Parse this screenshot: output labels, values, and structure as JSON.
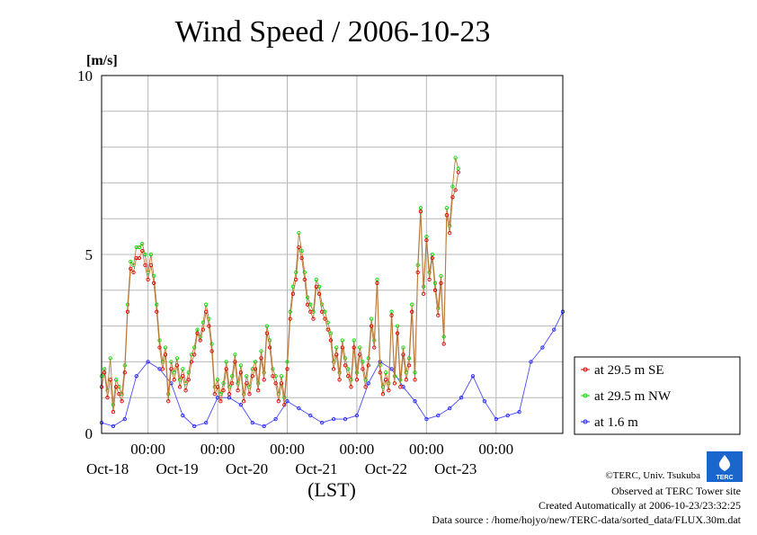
{
  "chart_data": {
    "type": "line",
    "title": "Wind Speed / 2006-10-23",
    "ylabel": "[m/s]",
    "xlabel": "(LST)",
    "ylim": [
      0,
      10
    ],
    "yticks": [
      0,
      5,
      10
    ],
    "xlim": [
      "2006-10-17T08:00",
      "2006-10-23T23:00"
    ],
    "xticks": [
      {
        "at": "2006-10-18T00:00",
        "time": "00:00",
        "date": "Oct-18"
      },
      {
        "at": "2006-10-19T00:00",
        "time": "00:00",
        "date": "Oct-19"
      },
      {
        "at": "2006-10-20T00:00",
        "time": "00:00",
        "date": "Oct-20"
      },
      {
        "at": "2006-10-21T00:00",
        "time": "00:00",
        "date": "Oct-21"
      },
      {
        "at": "2006-10-22T00:00",
        "time": "00:00",
        "date": "Oct-22"
      },
      {
        "at": "2006-10-23T00:00",
        "time": "00:00",
        "date": "Oct-23"
      }
    ],
    "grid": true,
    "legend_position": "right",
    "series_info": [
      {
        "name": "at 29.5 m SE",
        "color": "#e00000"
      },
      {
        "name": "at 29.5 m NW",
        "color": "#00dd00"
      },
      {
        "name": "at 1.6 m",
        "color": "#2020ff"
      }
    ],
    "anchors_series_1": [
      [
        "2006-10-17T08:00",
        1.3
      ],
      [
        "2006-10-17T09:00",
        1.7
      ],
      [
        "2006-10-17T10:00",
        1.0
      ],
      [
        "2006-10-17T11:00",
        1.5
      ],
      [
        "2006-10-17T12:00",
        0.6
      ],
      [
        "2006-10-17T13:00",
        1.3
      ],
      [
        "2006-10-17T14:00",
        1.1
      ],
      [
        "2006-10-17T15:00",
        0.9
      ],
      [
        "2006-10-17T16:00",
        1.7
      ],
      [
        "2006-10-17T17:00",
        3.4
      ],
      [
        "2006-10-17T18:00",
        4.6
      ],
      [
        "2006-10-17T19:00",
        4.5
      ],
      [
        "2006-10-17T20:00",
        4.9
      ],
      [
        "2006-10-17T21:00",
        4.9
      ],
      [
        "2006-10-17T22:00",
        5.1
      ],
      [
        "2006-10-17T23:00",
        4.7
      ],
      [
        "2006-10-18T00:00",
        4.3
      ],
      [
        "2006-10-18T01:00",
        4.7
      ],
      [
        "2006-10-18T02:00",
        4.2
      ],
      [
        "2006-10-18T03:00",
        3.4
      ],
      [
        "2006-10-18T04:00",
        2.4
      ],
      [
        "2006-10-18T05:00",
        1.8
      ],
      [
        "2006-10-18T06:00",
        2.2
      ],
      [
        "2006-10-18T07:00",
        0.9
      ],
      [
        "2006-10-18T08:00",
        1.8
      ],
      [
        "2006-10-18T09:00",
        1.5
      ],
      [
        "2006-10-18T10:00",
        1.9
      ],
      [
        "2006-10-18T11:00",
        1.3
      ],
      [
        "2006-10-18T12:00",
        1.6
      ],
      [
        "2006-10-18T13:00",
        1.2
      ],
      [
        "2006-10-18T14:00",
        1.5
      ],
      [
        "2006-10-18T15:00",
        2.0
      ],
      [
        "2006-10-18T16:00",
        2.2
      ],
      [
        "2006-10-18T17:00",
        2.8
      ],
      [
        "2006-10-18T18:00",
        2.6
      ],
      [
        "2006-10-18T19:00",
        2.9
      ],
      [
        "2006-10-18T20:00",
        3.4
      ],
      [
        "2006-10-18T21:00",
        3.0
      ],
      [
        "2006-10-18T22:00",
        2.3
      ],
      [
        "2006-10-18T23:00",
        1.1
      ],
      [
        "2006-10-19T00:00",
        1.3
      ],
      [
        "2006-10-19T01:00",
        0.9
      ],
      [
        "2006-10-19T02:00",
        1.2
      ],
      [
        "2006-10-19T03:00",
        1.8
      ],
      [
        "2006-10-19T04:00",
        1.1
      ],
      [
        "2006-10-19T05:00",
        1.4
      ],
      [
        "2006-10-19T06:00",
        2.0
      ],
      [
        "2006-10-19T07:00",
        1.2
      ],
      [
        "2006-10-19T08:00",
        1.7
      ],
      [
        "2006-10-19T09:00",
        0.9
      ],
      [
        "2006-10-19T10:00",
        1.4
      ],
      [
        "2006-10-19T11:00",
        1.1
      ],
      [
        "2006-10-19T12:00",
        1.6
      ],
      [
        "2006-10-19T13:00",
        1.8
      ],
      [
        "2006-10-19T14:00",
        1.2
      ],
      [
        "2006-10-19T15:00",
        2.1
      ],
      [
        "2006-10-19T16:00",
        1.5
      ],
      [
        "2006-10-19T17:00",
        2.8
      ],
      [
        "2006-10-19T18:00",
        2.4
      ],
      [
        "2006-10-19T19:00",
        1.6
      ],
      [
        "2006-10-19T20:00",
        1.4
      ],
      [
        "2006-10-19T21:00",
        0.9
      ],
      [
        "2006-10-19T22:00",
        1.4
      ],
      [
        "2006-10-19T23:00",
        0.8
      ],
      [
        "2006-10-20T00:00",
        1.8
      ],
      [
        "2006-10-20T01:00",
        3.2
      ],
      [
        "2006-10-20T02:00",
        3.9
      ],
      [
        "2006-10-20T03:00",
        4.3
      ],
      [
        "2006-10-20T04:00",
        5.2
      ],
      [
        "2006-10-20T05:00",
        4.9
      ],
      [
        "2006-10-20T06:00",
        4.3
      ],
      [
        "2006-10-20T07:00",
        3.6
      ],
      [
        "2006-10-20T08:00",
        3.4
      ],
      [
        "2006-10-20T09:00",
        3.2
      ],
      [
        "2006-10-20T10:00",
        4.1
      ],
      [
        "2006-10-20T11:00",
        3.9
      ],
      [
        "2006-10-20T12:00",
        3.4
      ],
      [
        "2006-10-20T13:00",
        3.2
      ],
      [
        "2006-10-20T14:00",
        2.9
      ],
      [
        "2006-10-20T15:00",
        2.6
      ],
      [
        "2006-10-20T16:00",
        1.8
      ],
      [
        "2006-10-20T17:00",
        2.2
      ],
      [
        "2006-10-20T18:00",
        1.5
      ],
      [
        "2006-10-20T19:00",
        2.4
      ],
      [
        "2006-10-20T20:00",
        1.9
      ],
      [
        "2006-10-20T21:00",
        1.6
      ],
      [
        "2006-10-20T22:00",
        1.3
      ],
      [
        "2006-10-20T23:00",
        2.4
      ],
      [
        "2006-10-21T00:00",
        1.5
      ],
      [
        "2006-10-21T01:00",
        2.2
      ],
      [
        "2006-10-21T02:00",
        1.8
      ],
      [
        "2006-10-21T03:00",
        1.3
      ],
      [
        "2006-10-21T04:00",
        1.9
      ],
      [
        "2006-10-21T05:00",
        3.0
      ],
      [
        "2006-10-21T06:00",
        2.4
      ],
      [
        "2006-10-21T07:00",
        4.2
      ],
      [
        "2006-10-21T08:00",
        1.7
      ],
      [
        "2006-10-21T09:00",
        1.1
      ],
      [
        "2006-10-21T10:00",
        1.5
      ],
      [
        "2006-10-21T11:00",
        1.2
      ],
      [
        "2006-10-21T12:00",
        3.3
      ],
      [
        "2006-10-21T13:00",
        1.4
      ],
      [
        "2006-10-21T14:00",
        2.8
      ],
      [
        "2006-10-21T15:00",
        1.3
      ],
      [
        "2006-10-21T16:00",
        2.2
      ],
      [
        "2006-10-21T17:00",
        1.5
      ],
      [
        "2006-10-21T18:00",
        1.9
      ],
      [
        "2006-10-21T19:00",
        3.4
      ],
      [
        "2006-10-21T20:00",
        1.5
      ],
      [
        "2006-10-21T21:00",
        4.5
      ],
      [
        "2006-10-21T22:00",
        6.2
      ],
      [
        "2006-10-21T23:00",
        3.9
      ],
      [
        "2006-10-22T00:00",
        5.4
      ],
      [
        "2006-10-22T01:00",
        4.3
      ],
      [
        "2006-10-22T02:00",
        4.9
      ],
      [
        "2006-10-22T03:00",
        4.0
      ],
      [
        "2006-10-22T04:00",
        3.3
      ],
      [
        "2006-10-22T05:00",
        4.2
      ],
      [
        "2006-10-22T06:00",
        2.5
      ],
      [
        "2006-10-22T07:00",
        6.1
      ],
      [
        "2006-10-22T08:00",
        5.6
      ],
      [
        "2006-10-22T09:00",
        6.6
      ],
      [
        "2006-10-22T10:00",
        6.8
      ],
      [
        "2006-10-22T11:00",
        7.3
      ]
    ],
    "anchors_series_2": [
      [
        "2006-10-17T08:00",
        1.6
      ],
      [
        "2006-10-17T09:00",
        1.8
      ],
      [
        "2006-10-17T10:00",
        1.2
      ],
      [
        "2006-10-17T11:00",
        2.1
      ],
      [
        "2006-10-17T12:00",
        0.8
      ],
      [
        "2006-10-17T13:00",
        1.5
      ],
      [
        "2006-10-17T14:00",
        1.3
      ],
      [
        "2006-10-17T15:00",
        1.1
      ],
      [
        "2006-10-17T16:00",
        1.9
      ],
      [
        "2006-10-17T17:00",
        3.6
      ],
      [
        "2006-10-17T18:00",
        4.8
      ],
      [
        "2006-10-17T19:00",
        4.7
      ],
      [
        "2006-10-17T20:00",
        5.2
      ],
      [
        "2006-10-17T21:00",
        5.2
      ],
      [
        "2006-10-17T22:00",
        5.3
      ],
      [
        "2006-10-17T23:00",
        5.0
      ],
      [
        "2006-10-18T00:00",
        4.5
      ],
      [
        "2006-10-18T01:00",
        5.0
      ],
      [
        "2006-10-18T02:00",
        4.4
      ],
      [
        "2006-10-18T03:00",
        3.6
      ],
      [
        "2006-10-18T04:00",
        2.6
      ],
      [
        "2006-10-18T05:00",
        2.0
      ],
      [
        "2006-10-18T06:00",
        2.4
      ],
      [
        "2006-10-18T07:00",
        1.1
      ],
      [
        "2006-10-18T08:00",
        2.0
      ],
      [
        "2006-10-18T09:00",
        1.7
      ],
      [
        "2006-10-18T10:00",
        2.1
      ],
      [
        "2006-10-18T11:00",
        1.5
      ],
      [
        "2006-10-18T12:00",
        1.8
      ],
      [
        "2006-10-18T13:00",
        1.4
      ],
      [
        "2006-10-18T14:00",
        1.7
      ],
      [
        "2006-10-18T15:00",
        2.2
      ],
      [
        "2006-10-18T16:00",
        2.4
      ],
      [
        "2006-10-18T17:00",
        2.9
      ],
      [
        "2006-10-18T18:00",
        2.7
      ],
      [
        "2006-10-18T19:00",
        3.1
      ],
      [
        "2006-10-18T20:00",
        3.6
      ],
      [
        "2006-10-18T21:00",
        3.2
      ],
      [
        "2006-10-18T22:00",
        2.5
      ],
      [
        "2006-10-18T23:00",
        1.3
      ],
      [
        "2006-10-19T00:00",
        1.5
      ],
      [
        "2006-10-19T01:00",
        1.1
      ],
      [
        "2006-10-19T02:00",
        1.4
      ],
      [
        "2006-10-19T03:00",
        2.0
      ],
      [
        "2006-10-19T04:00",
        1.3
      ],
      [
        "2006-10-19T05:00",
        1.6
      ],
      [
        "2006-10-19T06:00",
        2.2
      ],
      [
        "2006-10-19T07:00",
        1.4
      ],
      [
        "2006-10-19T08:00",
        1.9
      ],
      [
        "2006-10-19T09:00",
        1.1
      ],
      [
        "2006-10-19T10:00",
        1.6
      ],
      [
        "2006-10-19T11:00",
        1.3
      ],
      [
        "2006-10-19T12:00",
        1.8
      ],
      [
        "2006-10-19T13:00",
        2.0
      ],
      [
        "2006-10-19T14:00",
        1.4
      ],
      [
        "2006-10-19T15:00",
        2.3
      ],
      [
        "2006-10-19T16:00",
        1.7
      ],
      [
        "2006-10-19T17:00",
        3.0
      ],
      [
        "2006-10-19T18:00",
        2.6
      ],
      [
        "2006-10-19T19:00",
        1.8
      ],
      [
        "2006-10-19T20:00",
        1.6
      ],
      [
        "2006-10-19T21:00",
        1.1
      ],
      [
        "2006-10-19T22:00",
        1.6
      ],
      [
        "2006-10-19T23:00",
        1.0
      ],
      [
        "2006-10-20T00:00",
        2.0
      ],
      [
        "2006-10-20T01:00",
        3.4
      ],
      [
        "2006-10-20T02:00",
        4.1
      ],
      [
        "2006-10-20T03:00",
        4.5
      ],
      [
        "2006-10-20T04:00",
        5.6
      ],
      [
        "2006-10-20T05:00",
        5.1
      ],
      [
        "2006-10-20T06:00",
        4.5
      ],
      [
        "2006-10-20T07:00",
        3.8
      ],
      [
        "2006-10-20T08:00",
        3.6
      ],
      [
        "2006-10-20T09:00",
        3.4
      ],
      [
        "2006-10-20T10:00",
        4.3
      ],
      [
        "2006-10-20T11:00",
        4.1
      ],
      [
        "2006-10-20T12:00",
        3.6
      ],
      [
        "2006-10-20T13:00",
        3.4
      ],
      [
        "2006-10-20T14:00",
        3.1
      ],
      [
        "2006-10-20T15:00",
        2.8
      ],
      [
        "2006-10-20T16:00",
        2.0
      ],
      [
        "2006-10-20T17:00",
        2.4
      ],
      [
        "2006-10-20T18:00",
        1.7
      ],
      [
        "2006-10-20T19:00",
        2.6
      ],
      [
        "2006-10-20T20:00",
        2.1
      ],
      [
        "2006-10-20T21:00",
        1.8
      ],
      [
        "2006-10-20T22:00",
        1.5
      ],
      [
        "2006-10-20T23:00",
        2.6
      ],
      [
        "2006-10-21T00:00",
        1.7
      ],
      [
        "2006-10-21T01:00",
        2.4
      ],
      [
        "2006-10-21T02:00",
        2.0
      ],
      [
        "2006-10-21T03:00",
        1.5
      ],
      [
        "2006-10-21T04:00",
        2.1
      ],
      [
        "2006-10-21T05:00",
        3.2
      ],
      [
        "2006-10-21T06:00",
        2.6
      ],
      [
        "2006-10-21T07:00",
        4.3
      ],
      [
        "2006-10-21T08:00",
        1.9
      ],
      [
        "2006-10-21T09:00",
        1.3
      ],
      [
        "2006-10-21T10:00",
        1.7
      ],
      [
        "2006-10-21T11:00",
        1.4
      ],
      [
        "2006-10-21T12:00",
        3.4
      ],
      [
        "2006-10-21T13:00",
        1.6
      ],
      [
        "2006-10-21T14:00",
        3.0
      ],
      [
        "2006-10-21T15:00",
        1.5
      ],
      [
        "2006-10-21T16:00",
        2.4
      ],
      [
        "2006-10-21T17:00",
        1.7
      ],
      [
        "2006-10-21T18:00",
        2.1
      ],
      [
        "2006-10-21T19:00",
        3.6
      ],
      [
        "2006-10-21T20:00",
        1.7
      ],
      [
        "2006-10-21T21:00",
        4.7
      ],
      [
        "2006-10-21T22:00",
        6.3
      ],
      [
        "2006-10-21T23:00",
        4.1
      ],
      [
        "2006-10-22T00:00",
        5.5
      ],
      [
        "2006-10-22T01:00",
        4.5
      ],
      [
        "2006-10-22T02:00",
        5.0
      ],
      [
        "2006-10-22T03:00",
        4.2
      ],
      [
        "2006-10-22T04:00",
        3.5
      ],
      [
        "2006-10-22T05:00",
        4.4
      ],
      [
        "2006-10-22T06:00",
        2.7
      ],
      [
        "2006-10-22T07:00",
        6.3
      ],
      [
        "2006-10-22T08:00",
        5.8
      ],
      [
        "2006-10-22T09:00",
        6.9
      ],
      [
        "2006-10-22T10:00",
        7.7
      ],
      [
        "2006-10-22T11:00",
        7.4
      ]
    ],
    "anchors_series_3": [
      [
        "2006-10-17T08:00",
        0.3
      ],
      [
        "2006-10-17T12:00",
        0.2
      ],
      [
        "2006-10-17T16:00",
        0.4
      ],
      [
        "2006-10-17T20:00",
        1.6
      ],
      [
        "2006-10-18T00:00",
        2.0
      ],
      [
        "2006-10-18T04:00",
        1.8
      ],
      [
        "2006-10-18T08:00",
        1.4
      ],
      [
        "2006-10-18T12:00",
        0.5
      ],
      [
        "2006-10-18T16:00",
        0.2
      ],
      [
        "2006-10-18T20:00",
        0.3
      ],
      [
        "2006-10-19T00:00",
        1.0
      ],
      [
        "2006-10-19T04:00",
        1.0
      ],
      [
        "2006-10-19T08:00",
        0.8
      ],
      [
        "2006-10-19T12:00",
        0.3
      ],
      [
        "2006-10-19T16:00",
        0.2
      ],
      [
        "2006-10-19T20:00",
        0.4
      ],
      [
        "2006-10-20T00:00",
        0.9
      ],
      [
        "2006-10-20T04:00",
        0.7
      ],
      [
        "2006-10-20T08:00",
        0.5
      ],
      [
        "2006-10-20T12:00",
        0.3
      ],
      [
        "2006-10-20T16:00",
        0.4
      ],
      [
        "2006-10-20T20:00",
        0.4
      ],
      [
        "2006-10-21T00:00",
        0.5
      ],
      [
        "2006-10-21T04:00",
        1.4
      ],
      [
        "2006-10-21T08:00",
        2.0
      ],
      [
        "2006-10-21T12:00",
        1.8
      ],
      [
        "2006-10-21T16:00",
        1.3
      ],
      [
        "2006-10-21T20:00",
        0.9
      ],
      [
        "2006-10-22T00:00",
        0.4
      ],
      [
        "2006-10-22T04:00",
        0.5
      ],
      [
        "2006-10-22T08:00",
        0.7
      ],
      [
        "2006-10-22T12:00",
        1.0
      ],
      [
        "2006-10-22T16:00",
        1.6
      ],
      [
        "2006-10-22T20:00",
        0.9
      ],
      [
        "2006-10-23T00:00",
        0.4
      ],
      [
        "2006-10-23T04:00",
        0.5
      ],
      [
        "2006-10-23T08:00",
        0.6
      ],
      [
        "2006-10-23T12:00",
        2.0
      ],
      [
        "2006-10-23T16:00",
        2.4
      ],
      [
        "2006-10-23T20:00",
        2.9
      ],
      [
        "2006-10-23T23:00",
        3.4
      ]
    ]
  },
  "footer": {
    "copyright": "©TERC, Univ. Tsukuba",
    "observed": "Observed at TERC Tower site",
    "created": "Created Automatically at 2006-10-23/23:32:25",
    "source": "Data source : /home/hojyo/new/TERC-data/sorted_data/FLUX.30m.dat"
  },
  "logo": {
    "text": "TERC",
    "color": "#1a66cc"
  }
}
